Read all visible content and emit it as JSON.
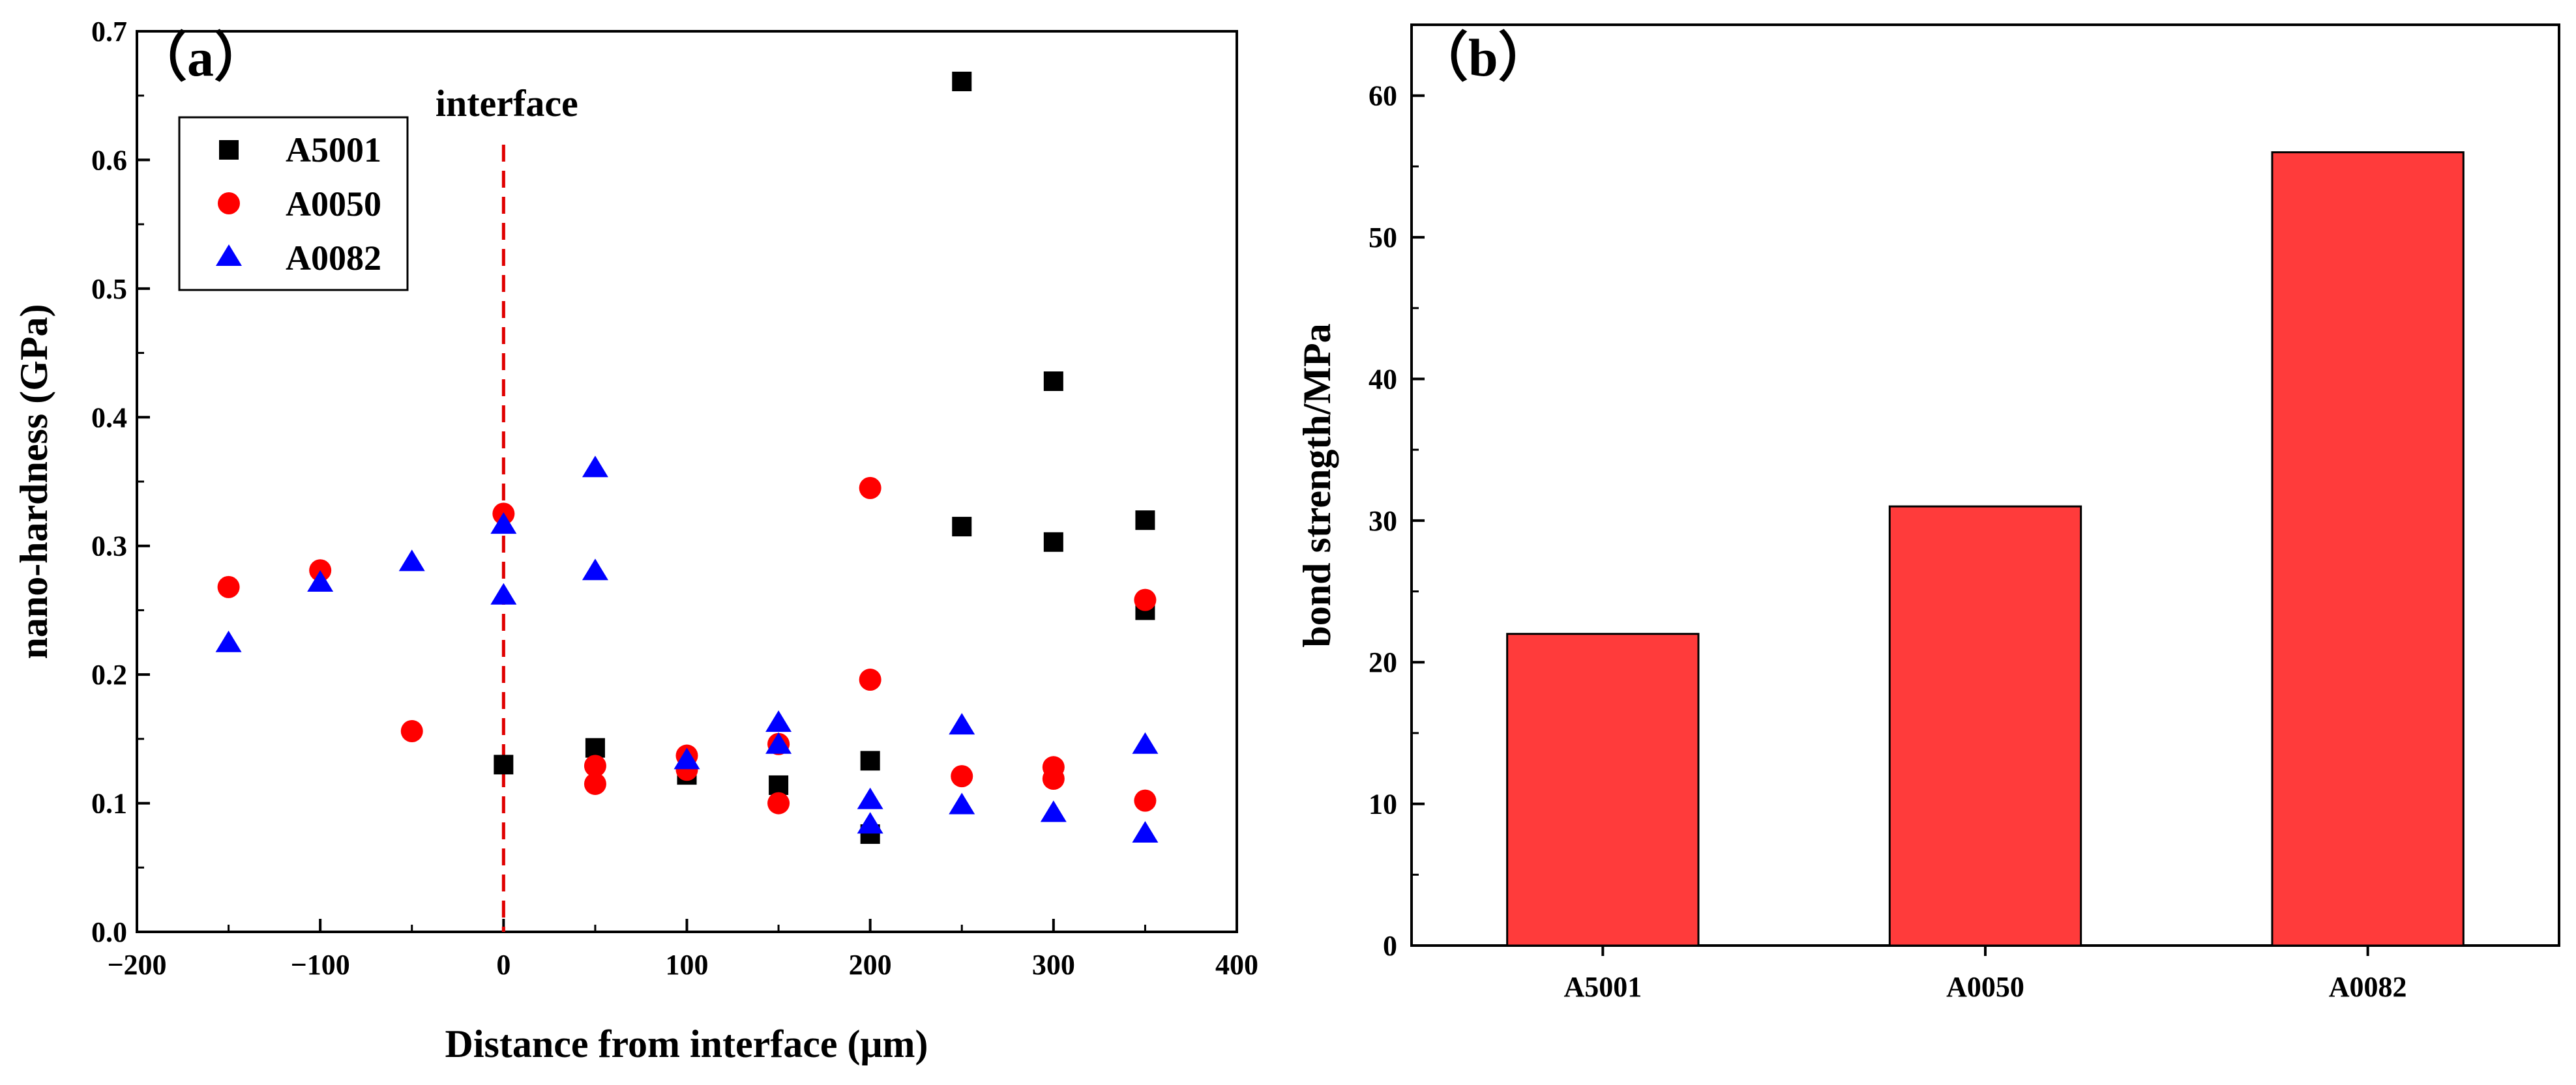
{
  "chart_data": [
    {
      "id": "a",
      "type": "scatter",
      "panel_label": "（a）",
      "title": "",
      "xlabel": "Distance from interface (μm)",
      "ylabel": "nano-hardness (GPa)",
      "xlim": [
        -200,
        400
      ],
      "ylim": [
        0.0,
        0.7
      ],
      "xticks": [
        -200,
        -100,
        0,
        100,
        200,
        300,
        400
      ],
      "xtick_labels": [
        "−200",
        "−100",
        "0",
        "100",
        "200",
        "300",
        "400"
      ],
      "yticks": [
        0.0,
        0.1,
        0.2,
        0.3,
        0.4,
        0.5,
        0.6,
        0.7
      ],
      "ytick_labels": [
        "0.0",
        "0.1",
        "0.2",
        "0.3",
        "0.4",
        "0.5",
        "0.6",
        "0.7"
      ],
      "grid": false,
      "legend_position": "top-left",
      "annotation": {
        "text": "interface",
        "x": 0
      },
      "series": [
        {
          "name": "A5001",
          "marker": "square",
          "color": "#000000",
          "points": [
            [
              0,
              0.13
            ],
            [
              50,
              0.143
            ],
            [
              100,
              0.122
            ],
            [
              150,
              0.114
            ],
            [
              200,
              0.133
            ],
            [
              200,
              0.076
            ],
            [
              250,
              0.661
            ],
            [
              250,
              0.315
            ],
            [
              300,
              0.428
            ],
            [
              300,
              0.303
            ],
            [
              350,
              0.32
            ],
            [
              350,
              0.25
            ]
          ]
        },
        {
          "name": "A0050",
          "marker": "circle",
          "color": "#ff0000",
          "points": [
            [
              -150,
              0.268
            ],
            [
              -100,
              0.281
            ],
            [
              -50,
              0.156
            ],
            [
              0,
              0.325
            ],
            [
              50,
              0.129
            ],
            [
              50,
              0.115
            ],
            [
              100,
              0.137
            ],
            [
              100,
              0.126
            ],
            [
              150,
              0.146
            ],
            [
              150,
              0.1
            ],
            [
              200,
              0.345
            ],
            [
              200,
              0.196
            ],
            [
              250,
              0.121
            ],
            [
              300,
              0.128
            ],
            [
              300,
              0.119
            ],
            [
              350,
              0.258
            ],
            [
              350,
              0.102
            ]
          ]
        },
        {
          "name": "A0082",
          "marker": "triangle",
          "color": "#0000ff",
          "points": [
            [
              -150,
              0.224
            ],
            [
              -100,
              0.271
            ],
            [
              -50,
              0.287
            ],
            [
              0,
              0.316
            ],
            [
              0,
              0.261
            ],
            [
              50,
              0.36
            ],
            [
              50,
              0.28
            ],
            [
              100,
              0.133
            ],
            [
              150,
              0.162
            ],
            [
              150,
              0.145
            ],
            [
              200,
              0.102
            ],
            [
              200,
              0.083
            ],
            [
              250,
              0.16
            ],
            [
              250,
              0.098
            ],
            [
              300,
              0.092
            ],
            [
              350,
              0.145
            ],
            [
              350,
              0.076
            ]
          ]
        }
      ]
    },
    {
      "id": "b",
      "type": "bar",
      "panel_label": "（b）",
      "title": "",
      "xlabel": "",
      "ylabel": "bond strength/MPa",
      "categories": [
        "A5001",
        "A0050",
        "A0082"
      ],
      "values": [
        22,
        31,
        56
      ],
      "ylim": [
        0,
        65
      ],
      "yticks": [
        0,
        10,
        20,
        30,
        40,
        50,
        60
      ],
      "ytick_labels": [
        "0",
        "10",
        "20",
        "30",
        "40",
        "50",
        "60"
      ],
      "bar_color": "#ff3b3b",
      "grid": false
    }
  ]
}
